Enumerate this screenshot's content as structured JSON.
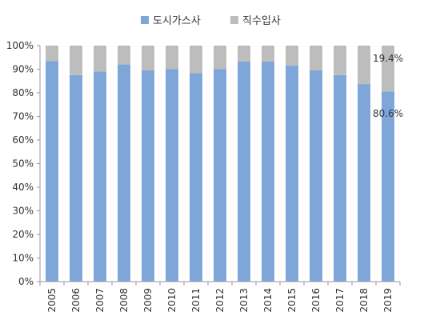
{
  "chart_data": {
    "type": "bar",
    "stacked": true,
    "percent": true,
    "categories": [
      "2005",
      "2006",
      "2007",
      "2008",
      "2009",
      "2010",
      "2011",
      "2012",
      "2013",
      "2014",
      "2015",
      "2016",
      "2017",
      "2018",
      "2019"
    ],
    "series": [
      {
        "name": "도시가스사",
        "color": "#7ea6d8",
        "values": [
          93.5,
          87.5,
          89.0,
          92.0,
          89.5,
          90.0,
          88.3,
          90.0,
          93.3,
          93.3,
          91.5,
          89.5,
          87.5,
          83.7,
          80.6
        ]
      },
      {
        "name": "직수입사",
        "color": "#bdbdbd",
        "values": [
          6.5,
          12.5,
          11.0,
          8.0,
          10.5,
          10.0,
          11.7,
          10.0,
          6.7,
          6.7,
          8.5,
          10.5,
          12.5,
          16.3,
          19.4
        ]
      }
    ],
    "ylim": [
      0,
      100
    ],
    "yticks": [
      "0%",
      "10%",
      "20%",
      "30%",
      "40%",
      "50%",
      "60%",
      "70%",
      "80%",
      "90%",
      "100%"
    ],
    "legend_position": "top",
    "grid": false,
    "annotations": [
      {
        "category": "2019",
        "series": "직수입사",
        "text": "19.4%"
      },
      {
        "category": "2019",
        "series": "도시가스사",
        "text": "80.6%"
      }
    ]
  }
}
